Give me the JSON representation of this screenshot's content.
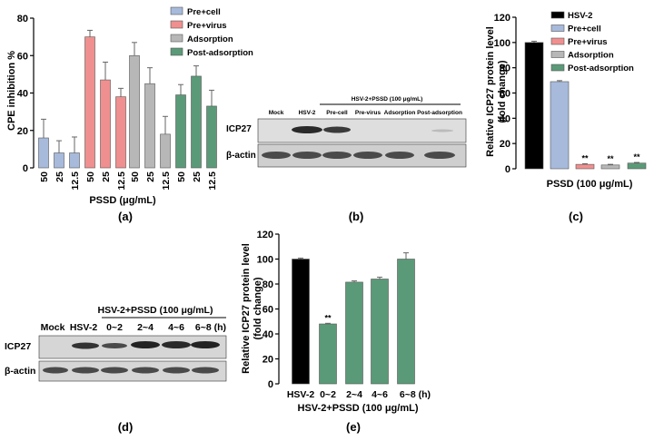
{
  "panels": {
    "a": {
      "label": "(a)",
      "chart_type": "bar",
      "ylabel": "CPE inhibition %",
      "xlabel": "PSSD (μg/mL)",
      "ylim": [
        0,
        80
      ],
      "yticks": [
        "0",
        "20",
        "40",
        "60",
        "80"
      ],
      "legend": [
        {
          "name": "Pre+cell",
          "color": "#a7badb"
        },
        {
          "name": "Pre+virus",
          "color": "#f08f8f"
        },
        {
          "name": "Adsorption",
          "color": "#b7b7b7"
        },
        {
          "name": "Post-adsorption",
          "color": "#5b9a78"
        }
      ],
      "groups": [
        {
          "name": "Pre+cell",
          "color": "#a7badb",
          "doses": [
            "50",
            "25",
            "12.5"
          ],
          "values": [
            16,
            8,
            8
          ],
          "errors": [
            10,
            6.5,
            8.5
          ]
        },
        {
          "name": "Pre+virus",
          "color": "#f08f8f",
          "doses": [
            "50",
            "25",
            "12.5"
          ],
          "values": [
            70,
            47,
            38
          ],
          "errors": [
            3.5,
            9.5,
            4.5
          ]
        },
        {
          "name": "Adsorption",
          "color": "#b7b7b7",
          "doses": [
            "50",
            "25",
            "12.5"
          ],
          "values": [
            60,
            45,
            18
          ],
          "errors": [
            7,
            8.5,
            9.5
          ]
        },
        {
          "name": "Post-adsorption",
          "color": "#5b9a78",
          "doses": [
            "50",
            "25",
            "12.5"
          ],
          "values": [
            39,
            49,
            33
          ],
          "errors": [
            5.5,
            5.5,
            8.5
          ]
        }
      ]
    },
    "b": {
      "label": "(b)",
      "treatment_header": "HSV-2+PSSD (100 μg/mL)",
      "lanes": [
        "Mock",
        "HSV-2",
        "Pre-cell",
        "Pre-virus",
        "Adsorption",
        "Post-adsorption"
      ],
      "rows": [
        "ICP27",
        "β-actin"
      ]
    },
    "c": {
      "label": "(c)",
      "chart_type": "bar",
      "ylabel_line1": "Relative ICP27 protein level",
      "ylabel_line2": "(fold change)",
      "xlabel": "PSSD (100 μg/mL)",
      "ylim": [
        0,
        120
      ],
      "yticks": [
        "0",
        "20",
        "40",
        "60",
        "80",
        "100",
        "120"
      ],
      "series": [
        {
          "name": "HSV-2",
          "color": "#000000",
          "value": 100,
          "error": 1,
          "sig": ""
        },
        {
          "name": "Pre+cell",
          "color": "#a7badb",
          "value": 69,
          "error": 0.8,
          "sig": ""
        },
        {
          "name": "Pre+virus",
          "color": "#f08f8f",
          "value": 3.5,
          "error": 0.5,
          "sig": "**"
        },
        {
          "name": "Adsorption",
          "color": "#b7b7b7",
          "value": 3,
          "error": 0.5,
          "sig": "**"
        },
        {
          "name": "Post-adsorption",
          "color": "#5b9a78",
          "value": 4.5,
          "error": 0.5,
          "sig": "**"
        }
      ]
    },
    "d": {
      "label": "(d)",
      "treatment_header": "HSV-2+PSSD (100 μg/mL)",
      "lanes": [
        "Mock",
        "HSV-2",
        "0~2",
        "2~4",
        "4~6",
        "6~8 (h)"
      ],
      "rows": [
        "ICP27",
        "β-actin"
      ]
    },
    "e": {
      "label": "(e)",
      "chart_type": "bar",
      "ylabel_line1": "Relative ICP27 protein level",
      "ylabel_line2": "(fold change)",
      "xlabel": "HSV-2+PSSD (100 μg/mL)",
      "ylim": [
        0,
        120
      ],
      "yticks": [
        "0",
        "20",
        "40",
        "60",
        "80",
        "100",
        "120"
      ],
      "categories": [
        "HSV-2",
        "0~2",
        "2~4",
        "4~6",
        "6~8 (h)"
      ],
      "values": [
        100,
        48,
        81.5,
        84,
        100
      ],
      "errors": [
        0.8,
        0.5,
        1,
        1.5,
        5
      ],
      "colors": [
        "#000000",
        "#5b9a78",
        "#5b9a78",
        "#5b9a78",
        "#5b9a78"
      ],
      "sig": [
        "",
        "**",
        "",
        "",
        ""
      ]
    }
  },
  "chart_data": [
    {
      "type": "bar",
      "title": "(a)",
      "xlabel": "PSSD (μg/mL)",
      "ylabel": "CPE inhibition %",
      "ylim": [
        0,
        80
      ],
      "categories": [
        "50",
        "25",
        "12.5"
      ],
      "series": [
        {
          "name": "Pre+cell",
          "values": [
            16,
            8,
            8
          ]
        },
        {
          "name": "Pre+virus",
          "values": [
            70,
            47,
            38
          ]
        },
        {
          "name": "Adsorption",
          "values": [
            60,
            45,
            18
          ]
        },
        {
          "name": "Post-adsorption",
          "values": [
            39,
            49,
            33
          ]
        }
      ]
    },
    {
      "type": "bar",
      "title": "(c)",
      "xlabel": "PSSD (100 μg/mL)",
      "ylabel": "Relative ICP27 protein level (fold change)",
      "ylim": [
        0,
        120
      ],
      "categories": [
        "HSV-2",
        "Pre+cell",
        "Pre+virus",
        "Adsorption",
        "Post-adsorption"
      ],
      "values": [
        100,
        69,
        3.5,
        3,
        4.5
      ]
    },
    {
      "type": "bar",
      "title": "(e)",
      "xlabel": "HSV-2+PSSD (100 μg/mL)",
      "ylabel": "Relative ICP27 protein level (fold change)",
      "ylim": [
        0,
        120
      ],
      "categories": [
        "HSV-2",
        "0~2",
        "2~4",
        "4~6",
        "6~8 (h)"
      ],
      "values": [
        100,
        48,
        81.5,
        84,
        100
      ]
    }
  ]
}
